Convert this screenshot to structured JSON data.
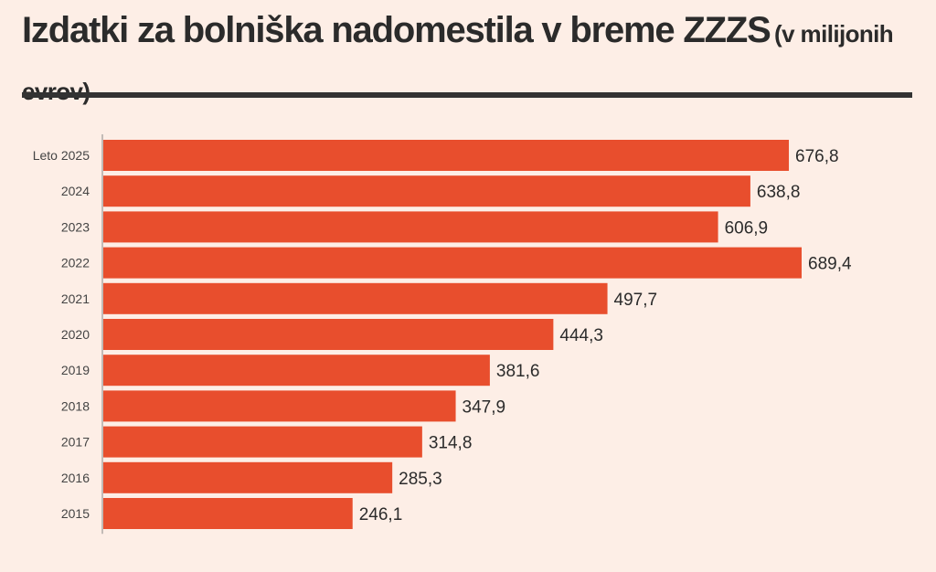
{
  "title": {
    "main": "Izdatki za bolniška nadomestila v breme ZZZS",
    "unit": "(v milijonih evrov)"
  },
  "colors": {
    "background": "#fdeee6",
    "bar": "#e84e2d",
    "text": "#2b2b2b",
    "rule": "#333333",
    "axis": "#888888"
  },
  "chart_data": {
    "type": "bar",
    "orientation": "horizontal",
    "categories": [
      "Leto 2025",
      "2024",
      "2023",
      "2022",
      "2021",
      "2020",
      "2019",
      "2018",
      "2017",
      "2016",
      "2015"
    ],
    "values": [
      676.8,
      638.8,
      606.9,
      689.4,
      497.7,
      444.3,
      381.6,
      347.9,
      314.8,
      285.3,
      246.1
    ],
    "value_labels": [
      "676,8",
      "638,8",
      "606,9",
      "689,4",
      "497,7",
      "444,3",
      "381,6",
      "347,9",
      "314,8",
      "285,3",
      "246,1"
    ],
    "title": "Izdatki za bolniška nadomestila v breme ZZZS (v milijonih evrov)",
    "xlabel": "",
    "ylabel": "",
    "xlim": [
      0,
      689.4
    ],
    "grid": false,
    "legend": "none"
  }
}
